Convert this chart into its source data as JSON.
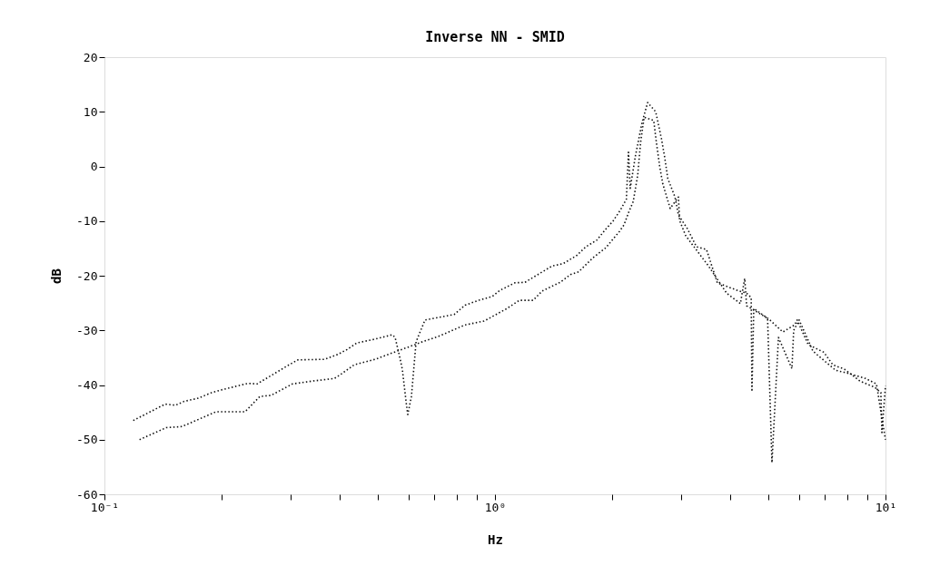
{
  "chart_data": {
    "type": "line",
    "title": "Inverse NN - SMID",
    "xlabel": "Hz",
    "ylabel": "dB",
    "log": "x",
    "grid": false,
    "legend": false,
    "marker": "none",
    "line_style": "dotted",
    "xlim": [
      0.1,
      10
    ],
    "xticks": [
      {
        "value": 0.1,
        "label": "10⁻¹"
      },
      {
        "value": 0.2,
        "label": null
      },
      {
        "value": 0.3,
        "label": null
      },
      {
        "value": 0.4,
        "label": null
      },
      {
        "value": 0.5,
        "label": null
      },
      {
        "value": 0.6,
        "label": null
      },
      {
        "value": 0.7,
        "label": null
      },
      {
        "value": 0.8,
        "label": null
      },
      {
        "value": 0.9,
        "label": null
      },
      {
        "value": 1,
        "label": "10⁰"
      },
      {
        "value": 2,
        "label": null
      },
      {
        "value": 3,
        "label": null
      },
      {
        "value": 4,
        "label": null
      },
      {
        "value": 5,
        "label": null
      },
      {
        "value": 6,
        "label": null
      },
      {
        "value": 7,
        "label": null
      },
      {
        "value": 8,
        "label": null
      },
      {
        "value": 9,
        "label": null
      },
      {
        "value": 10,
        "label": "10¹"
      }
    ],
    "ylim": [
      -60,
      20
    ],
    "yticks": [
      -60,
      -50,
      -40,
      -30,
      -20,
      -10,
      0,
      10,
      20
    ],
    "series": [
      {
        "color": "#111111",
        "x": [
          0.1185,
          0.143,
          0.152,
          0.16,
          0.174,
          0.188,
          0.199,
          0.233,
          0.246,
          0.274,
          0.297,
          0.313,
          0.366,
          0.396,
          0.418,
          0.443,
          0.493,
          0.546,
          0.555,
          0.57,
          0.579,
          0.594,
          0.598,
          0.611,
          0.628,
          0.662,
          0.786,
          0.838,
          0.908,
          0.984,
          1.028,
          1.125,
          1.194,
          1.273,
          1.402,
          1.494,
          1.619,
          1.709,
          1.822,
          1.921,
          2.006,
          2.094,
          2.17,
          2.197,
          2.22,
          2.29,
          2.38,
          2.46,
          2.58,
          2.67,
          2.72,
          2.77,
          2.89,
          2.95,
          3.11,
          3.28,
          3.48,
          3.71,
          4.18,
          4.41,
          4.53,
          4.55,
          4.6,
          5.04,
          5.46,
          5.85,
          5.94,
          6.34,
          6.95,
          7.33,
          7.85,
          8.61,
          9.38,
          9.73,
          9.79,
          10
        ],
        "values": [
          -46.5,
          -43.5,
          -43.7,
          -43,
          -42.4,
          -41.4,
          -40.9,
          -39.7,
          -39.8,
          -37.8,
          -36.3,
          -35.4,
          -35.3,
          -34.4,
          -33.5,
          -32.3,
          -31.6,
          -30.8,
          -31.3,
          -34.8,
          -37.1,
          -43.9,
          -45.4,
          -42.1,
          -32.1,
          -28.1,
          -27.1,
          -25.4,
          -24.5,
          -23.8,
          -22.7,
          -21.3,
          -21.2,
          -20,
          -18.2,
          -17.8,
          -16.3,
          -14.7,
          -13.5,
          -11.5,
          -10,
          -8,
          -6,
          2.6,
          -4,
          2,
          8,
          11.7,
          10,
          5,
          1.7,
          -2.2,
          -5.6,
          -8.9,
          -11.4,
          -14.7,
          -15.2,
          -21.3,
          -22.7,
          -23.2,
          -24,
          -41.2,
          -26,
          -28,
          -30.3,
          -29,
          -28.1,
          -32.6,
          -34,
          -36.3,
          -37.1,
          -39.3,
          -40.4,
          -41.4,
          -48.7,
          -40.1
        ]
      },
      {
        "color": "#111111",
        "x": [
          0.123,
          0.134,
          0.144,
          0.158,
          0.193,
          0.229,
          0.25,
          0.267,
          0.303,
          0.339,
          0.388,
          0.402,
          0.436,
          0.493,
          0.669,
          0.717,
          0.838,
          0.938,
          1.067,
          1.155,
          1.252,
          1.321,
          1.469,
          1.56,
          1.637,
          1.783,
          1.921,
          2.083,
          2.14,
          2.197,
          2.26,
          2.32,
          2.36,
          2.41,
          2.55,
          2.59,
          2.64,
          2.69,
          2.81,
          2.95,
          2.97,
          3.08,
          3.52,
          3.92,
          4.25,
          4.36,
          4.41,
          4.99,
          5.12,
          5.32,
          5.76,
          5.82,
          6.01,
          6.52,
          7.45,
          8.07,
          8.89,
          9.48,
          9.84,
          10
        ],
        "values": [
          -50,
          -48.8,
          -47.8,
          -47.6,
          -44.9,
          -44.9,
          -42.1,
          -41.9,
          -39.8,
          -39.3,
          -38.8,
          -38.1,
          -36.3,
          -35.3,
          -31.8,
          -31.1,
          -29,
          -28.3,
          -26.1,
          -24.5,
          -24.5,
          -22.8,
          -21.2,
          -19.8,
          -19.3,
          -16.7,
          -14.9,
          -11.9,
          -10.7,
          -8.5,
          -6.4,
          -1.6,
          4.4,
          9,
          8.4,
          4.4,
          0.1,
          -3.2,
          -7.7,
          -5.6,
          -9.9,
          -12.7,
          -18.2,
          -23.2,
          -25.1,
          -20.5,
          -25.5,
          -27.8,
          -54.2,
          -31.3,
          -37,
          -30,
          -28.1,
          -33.8,
          -37.3,
          -37.9,
          -38.8,
          -39.8,
          -47,
          -50
        ]
      }
    ]
  }
}
